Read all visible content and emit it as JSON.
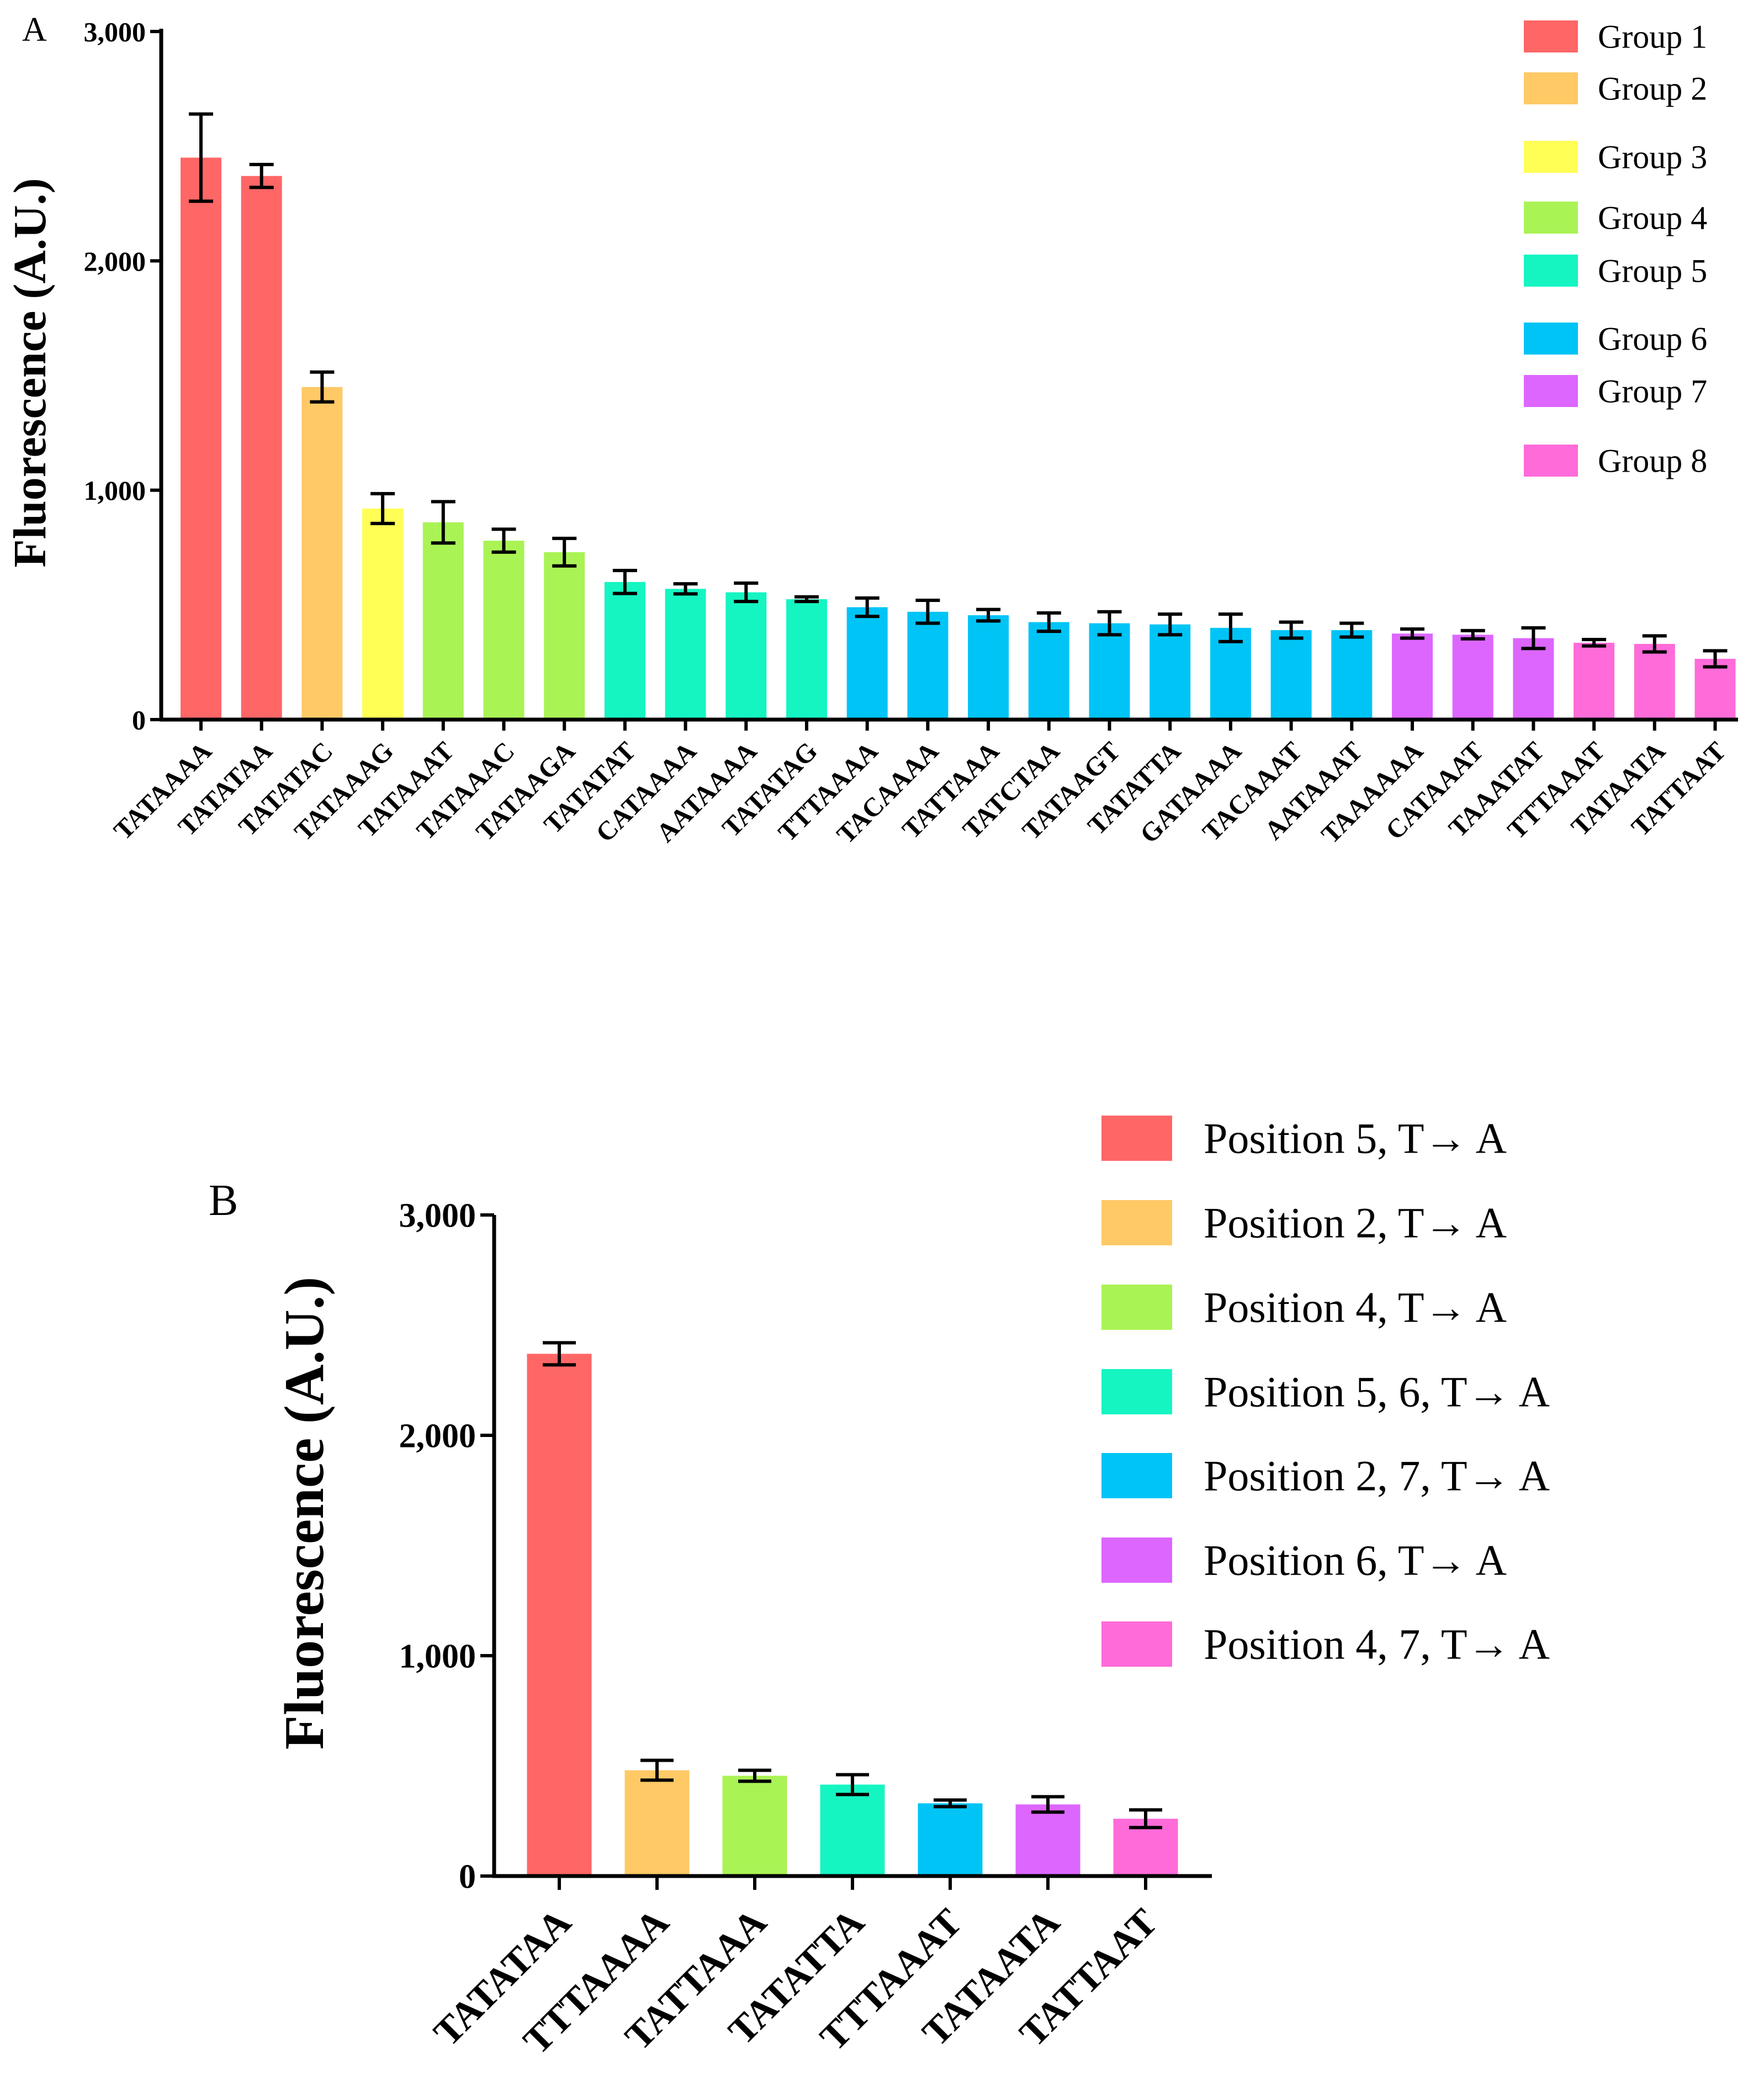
{
  "chart_data": [
    {
      "panel_label": "A",
      "type": "bar",
      "title": "",
      "xlabel": "",
      "ylabel": "Fluorescence (A.U.)",
      "ylim": [
        0,
        3000
      ],
      "yticks": [
        0,
        1000,
        2000,
        3000
      ],
      "ytick_labels": [
        "0",
        "1,000",
        "2,000",
        "3,000"
      ],
      "grid": false,
      "legend_position": "top-right",
      "legend": [
        {
          "label": "Group 1",
          "color": "#FF6666"
        },
        {
          "label": "Group 2",
          "color": "#FFC966"
        },
        {
          "label": "Group 3",
          "color": "#FFFF55"
        },
        {
          "label": "Group 4",
          "color": "#AAF355"
        },
        {
          "label": "Group 5",
          "color": "#15F5C2"
        },
        {
          "label": "Group 6",
          "color": "#00C4F6"
        },
        {
          "label": "Group 7",
          "color": "#DD66FF"
        },
        {
          "label": "Group 8",
          "color": "#FF6BD9"
        }
      ],
      "categories": [
        "TATAAAA",
        "TATATAA",
        "TATATAC",
        "TATAAAG",
        "TATAAAT",
        "TATAAAC",
        "TATAAGA",
        "TATATAT",
        "CATAAAA",
        "AATAAAA",
        "TATATAG",
        "TTTAAAA",
        "TACAAAA",
        "TATTAAA",
        "TATCTAA",
        "TATAAGT",
        "TATATTA",
        "GATAAAA",
        "TACAAAT",
        "AATAAAT",
        "TAAAAAA",
        "CATAAAT",
        "TAAATAT",
        "TTTAAAT",
        "TATAATA",
        "TATTAAT"
      ],
      "values": [
        2450,
        2370,
        1450,
        920,
        860,
        780,
        730,
        600,
        570,
        555,
        525,
        490,
        470,
        455,
        425,
        420,
        415,
        400,
        390,
        390,
        375,
        370,
        355,
        335,
        330,
        265
      ],
      "errors": [
        190,
        50,
        65,
        65,
        90,
        50,
        60,
        50,
        22,
        40,
        10,
        40,
        50,
        25,
        40,
        50,
        45,
        60,
        35,
        30,
        20,
        18,
        45,
        14,
        35,
        35
      ],
      "groups": [
        1,
        1,
        2,
        3,
        4,
        4,
        4,
        5,
        5,
        5,
        5,
        6,
        6,
        6,
        6,
        6,
        6,
        6,
        6,
        6,
        7,
        7,
        7,
        8,
        8,
        8
      ]
    },
    {
      "panel_label": "B",
      "type": "bar",
      "title": "",
      "xlabel": "",
      "ylabel": "Fluorescence (A.U.)",
      "ylim": [
        0,
        3000
      ],
      "yticks": [
        0,
        1000,
        2000,
        3000
      ],
      "ytick_labels": [
        "0",
        "1,000",
        "2,000",
        "3,000"
      ],
      "grid": false,
      "legend_position": "top-right",
      "legend": [
        {
          "label": "Position 5, T→ A",
          "color": "#FF6666"
        },
        {
          "label": "Position 2, T→ A",
          "color": "#FFC966"
        },
        {
          "label": "Position 4, T→ A",
          "color": "#AAF355"
        },
        {
          "label": "Position 5, 6, T→ A",
          "color": "#15F5C2"
        },
        {
          "label": "Position 2, 7, T→ A",
          "color": "#00C4F6"
        },
        {
          "label": "Position 6, T→ A",
          "color": "#DD66FF"
        },
        {
          "label": "Position 4, 7, T→ A",
          "color": "#FF6BD9"
        }
      ],
      "categories": [
        "TATATAA",
        "TTTAAAA",
        "TATTAAA",
        "TATATTA",
        "TTTAAAT",
        "TATAATA",
        "TATTAAT"
      ],
      "values": [
        2370,
        480,
        455,
        415,
        330,
        325,
        260
      ],
      "errors": [
        50,
        45,
        25,
        45,
        15,
        35,
        40
      ],
      "colors": [
        "#FF6666",
        "#FFC966",
        "#AAF355",
        "#15F5C2",
        "#00C4F6",
        "#DD66FF",
        "#FF6BD9"
      ]
    }
  ]
}
